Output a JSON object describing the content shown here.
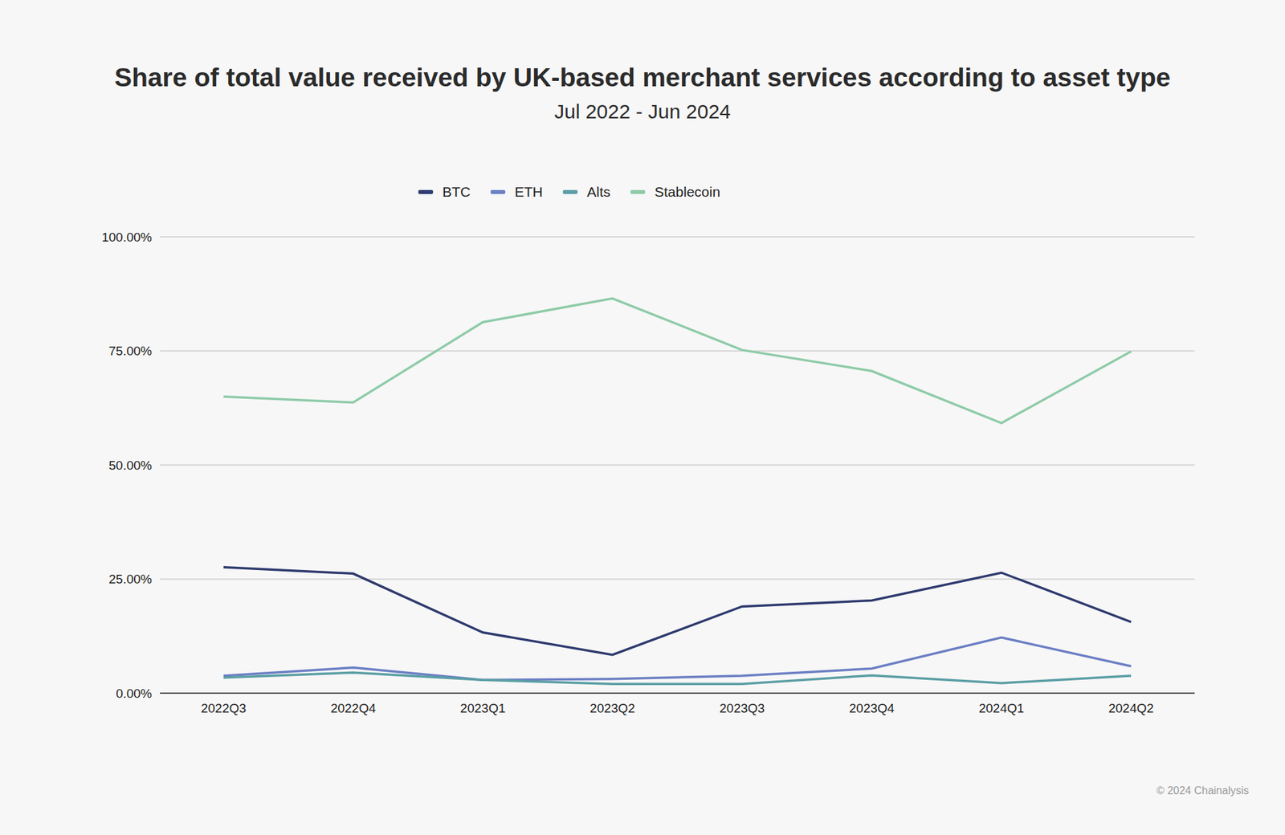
{
  "chart_data": {
    "type": "line",
    "title": "Share of total value received by UK-based merchant services according to asset type",
    "subtitle": "Jul 2022 - Jun 2024",
    "credit": "© 2024 Chainalysis",
    "categories": [
      "2022Q3",
      "2022Q4",
      "2023Q1",
      "2023Q2",
      "2023Q3",
      "2023Q4",
      "2024Q1",
      "2024Q2"
    ],
    "series": [
      {
        "name": "BTC",
        "color": "#2e3a6e",
        "values": [
          27.6,
          26.2,
          13.3,
          8.4,
          19.0,
          20.3,
          26.4,
          15.6
        ]
      },
      {
        "name": "ETH",
        "color": "#6b7fc4",
        "values": [
          3.8,
          5.6,
          2.9,
          3.1,
          3.8,
          5.4,
          12.2,
          5.9
        ]
      },
      {
        "name": "Alts",
        "color": "#5a9ea4",
        "values": [
          3.4,
          4.5,
          2.9,
          2.0,
          2.0,
          3.9,
          2.2,
          3.8
        ]
      },
      {
        "name": "Stablecoin",
        "color": "#8ecba8",
        "values": [
          65.0,
          63.7,
          81.3,
          86.5,
          75.2,
          70.6,
          59.2,
          74.9
        ]
      }
    ],
    "ylim": [
      0,
      100
    ],
    "yticks": [
      {
        "value": 0,
        "label": "0.00%"
      },
      {
        "value": 25,
        "label": "25.00%"
      },
      {
        "value": 50,
        "label": "50.00%"
      },
      {
        "value": 75,
        "label": "75.00%"
      },
      {
        "value": 100,
        "label": "100.00%"
      }
    ],
    "grid": true,
    "legend": "top"
  }
}
